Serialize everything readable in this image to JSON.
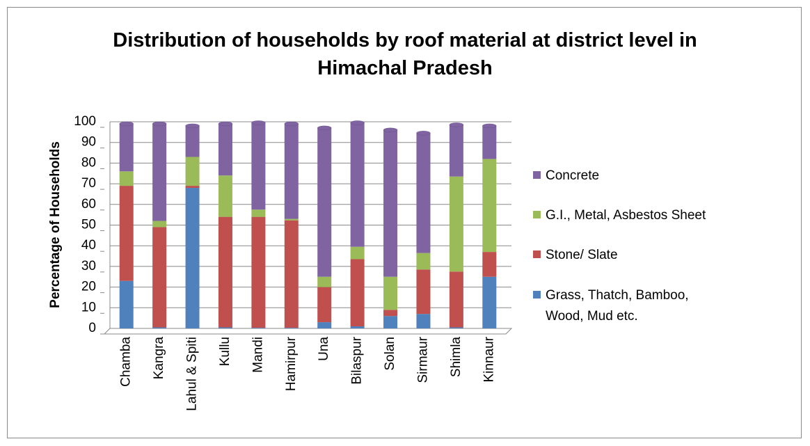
{
  "chart_data": {
    "type": "bar",
    "stacked": true,
    "title": "Distribution of households by roof material at district level in Himachal Pradesh",
    "y_label": "Percentage of Households",
    "categories": [
      "Chamba",
      "Kangra",
      "Lahul & Spiti",
      "Kullu",
      "Mandi",
      "Hamirpur",
      "Una",
      "Bilaspur",
      "Solan",
      "Sirmaur",
      "Shimla",
      "Kinnaur"
    ],
    "series": [
      {
        "name": "Grass, Thatch, Bamboo, Wood, Mud etc.",
        "color": "#4f81bd",
        "values": [
          23,
          0.5,
          68,
          0.5,
          0.3,
          0.3,
          3,
          1,
          6,
          7,
          0.5,
          25
        ]
      },
      {
        "name": "Stone/ Slate",
        "color": "#c0504d",
        "values": [
          46,
          48.5,
          1,
          53.5,
          53.7,
          52,
          17,
          32.5,
          3,
          21.5,
          27,
          12
        ]
      },
      {
        "name": "G.I., Metal, Asbestos Sheet",
        "color": "#9bbb59",
        "values": [
          7,
          3,
          14,
          20,
          3.5,
          0.7,
          5,
          6,
          16,
          8,
          46,
          45
        ]
      },
      {
        "name": "Concrete",
        "color": "#8064a2",
        "values": [
          23,
          47,
          15,
          25,
          42,
          46,
          72,
          60,
          71,
          58,
          25,
          16
        ]
      }
    ],
    "ylim": [
      0,
      100
    ],
    "yticks": [
      0,
      10,
      20,
      30,
      40,
      50,
      60,
      70,
      80,
      90,
      100
    ],
    "grid": true
  }
}
